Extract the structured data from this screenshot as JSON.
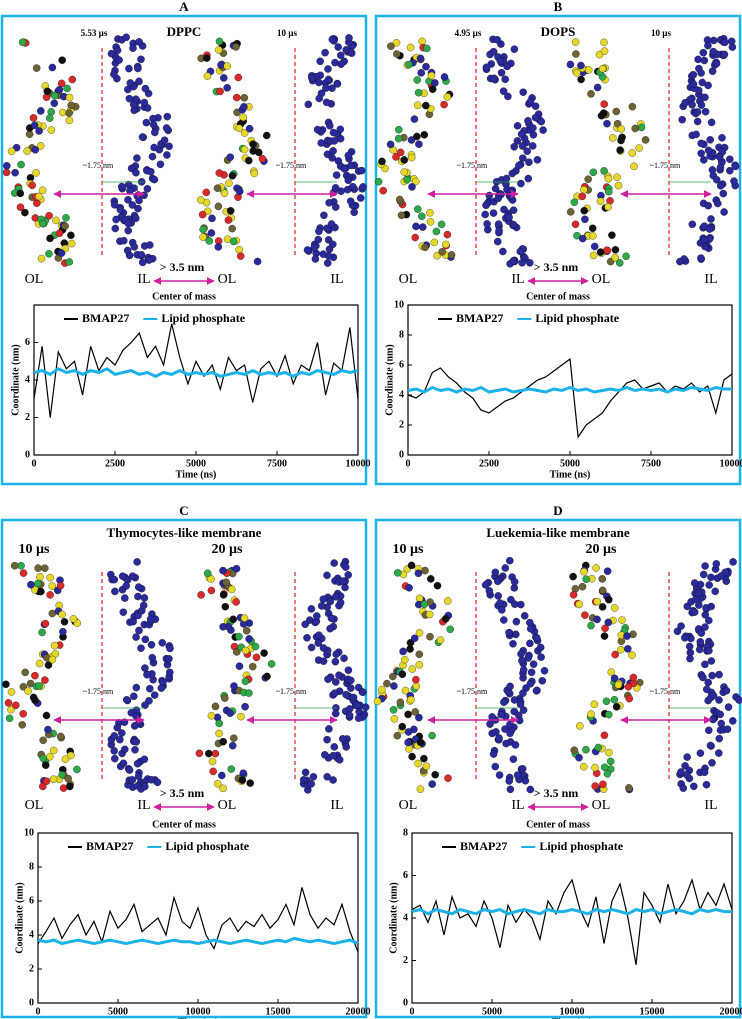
{
  "chart_data": [
    {
      "type": "line",
      "panel": "A",
      "title": "DPPC",
      "snapshots": [
        {
          "time": "5.53 µs",
          "distance": "~1.75 nm"
        },
        {
          "time": "10 µs",
          "distance": "~1.75 nm"
        }
      ],
      "layer_labels": [
        "OL",
        "IL",
        "OL",
        "IL"
      ],
      "separation": "> 3.5 nm",
      "caption": "Center of mass",
      "xlabel": "Time (ns)",
      "ylabel": "Coordinate (nm)",
      "x": [
        0,
        250,
        500,
        750,
        1000,
        1250,
        1500,
        1750,
        2000,
        2250,
        2500,
        2750,
        3000,
        3250,
        3500,
        3750,
        4000,
        4250,
        4500,
        4750,
        5000,
        5250,
        5500,
        5750,
        6000,
        6250,
        6500,
        6750,
        7000,
        7250,
        7500,
        7750,
        8000,
        8250,
        8500,
        8750,
        9000,
        9250,
        9500,
        9750,
        10000
      ],
      "series": [
        {
          "name": "BMAP27",
          "color": "#000000",
          "values": [
            3.0,
            5.8,
            2.0,
            5.5,
            4.6,
            5.0,
            3.2,
            5.8,
            4.5,
            5.2,
            4.8,
            5.6,
            6.0,
            6.5,
            5.2,
            5.8,
            4.8,
            7.0,
            5.2,
            3.8,
            5.0,
            4.2,
            4.8,
            3.5,
            5.2,
            4.5,
            4.8,
            2.8,
            4.6,
            5.0,
            4.2,
            5.3,
            3.8,
            4.8,
            4.5,
            6.0,
            3.2,
            4.9,
            4.5,
            6.8,
            3.0
          ]
        },
        {
          "name": "Lipid phosphate",
          "color": "#1ab2e8",
          "values": [
            4.4,
            4.5,
            4.3,
            4.6,
            4.4,
            4.5,
            4.3,
            4.5,
            4.4,
            4.6,
            4.3,
            4.4,
            4.5,
            4.3,
            4.4,
            4.2,
            4.4,
            4.3,
            4.5,
            4.3,
            4.4,
            4.3,
            4.4,
            4.2,
            4.3,
            4.4,
            4.3,
            4.5,
            4.3,
            4.4,
            4.3,
            4.4,
            4.2,
            4.4,
            4.3,
            4.5,
            4.4,
            4.3,
            4.5,
            4.4,
            4.5
          ]
        }
      ],
      "xlim": [
        0,
        10000
      ],
      "xticks": [
        0,
        2500,
        5000,
        7500,
        10000
      ],
      "ylim": [
        0,
        8
      ],
      "yticks": [
        0,
        2,
        4,
        6
      ],
      "legend": "top"
    },
    {
      "type": "line",
      "panel": "B",
      "title": "DOPS",
      "snapshots": [
        {
          "time": "4.95 µs",
          "distance": "~1.75 nm"
        },
        {
          "time": "10 µs",
          "distance": "~1.75 nm"
        }
      ],
      "layer_labels": [
        "OL",
        "IL",
        "OL",
        "IL"
      ],
      "separation": "> 3.5 nm",
      "caption": "Center of mass",
      "xlabel": "Time (ns)",
      "ylabel": "Coordinate (nm)",
      "x": [
        0,
        250,
        500,
        750,
        1000,
        1250,
        1500,
        1750,
        2000,
        2250,
        2500,
        2750,
        3000,
        3250,
        3500,
        3750,
        4000,
        4250,
        4500,
        4750,
        5000,
        5250,
        5500,
        5750,
        6000,
        6250,
        6500,
        6750,
        7000,
        7250,
        7500,
        7750,
        8000,
        8250,
        8500,
        8750,
        9000,
        9250,
        9500,
        9750,
        10000
      ],
      "series": [
        {
          "name": "BMAP27",
          "color": "#000000",
          "values": [
            4.0,
            3.8,
            4.2,
            5.5,
            5.8,
            5.2,
            4.8,
            4.2,
            3.8,
            3.0,
            2.8,
            3.2,
            3.6,
            3.8,
            4.2,
            4.6,
            5.0,
            5.2,
            5.6,
            6.0,
            6.4,
            1.2,
            2.0,
            2.4,
            2.8,
            3.6,
            4.2,
            4.8,
            5.0,
            4.4,
            4.6,
            4.8,
            4.2,
            4.6,
            4.4,
            4.8,
            4.2,
            4.6,
            2.8,
            5.0,
            5.4
          ]
        },
        {
          "name": "Lipid phosphate",
          "color": "#1ab2e8",
          "values": [
            4.3,
            4.4,
            4.2,
            4.5,
            4.3,
            4.4,
            4.2,
            4.4,
            4.3,
            4.5,
            4.2,
            4.3,
            4.4,
            4.2,
            4.3,
            4.4,
            4.3,
            4.2,
            4.4,
            4.3,
            4.5,
            4.3,
            4.4,
            4.2,
            4.3,
            4.4,
            4.3,
            4.5,
            4.3,
            4.4,
            4.3,
            4.4,
            4.2,
            4.4,
            4.3,
            4.5,
            4.4,
            4.3,
            4.5,
            4.4,
            4.4
          ]
        }
      ],
      "xlim": [
        0,
        10000
      ],
      "xticks": [
        0,
        2500,
        5000,
        7500,
        10000
      ],
      "ylim": [
        0,
        10
      ],
      "yticks": [
        0,
        2,
        4,
        6,
        8,
        10
      ],
      "legend": "top"
    },
    {
      "type": "line",
      "panel": "C",
      "title": "Thymocytes-like membrane",
      "snapshots": [
        {
          "time": "10 µs",
          "distance": "~1.75 nm"
        },
        {
          "time": "20 µs",
          "distance": "~1.75 nm"
        }
      ],
      "layer_labels": [
        "OL",
        "IL",
        "OL",
        "IL"
      ],
      "separation": "> 3.5 nm",
      "caption": "Center of mass",
      "xlabel": "Time (ns)",
      "ylabel": "Coordinate (nm)",
      "x": [
        0,
        500,
        1000,
        1500,
        2000,
        2500,
        3000,
        3500,
        4000,
        4500,
        5000,
        5500,
        6000,
        6500,
        7000,
        7500,
        8000,
        8500,
        9000,
        9500,
        10000,
        10500,
        11000,
        11500,
        12000,
        12500,
        13000,
        13500,
        14000,
        14500,
        15000,
        15500,
        16000,
        16500,
        17000,
        17500,
        18000,
        18500,
        19000,
        19500,
        20000
      ],
      "series": [
        {
          "name": "BMAP27",
          "color": "#000000",
          "values": [
            3.5,
            4.2,
            5.0,
            3.8,
            4.6,
            5.2,
            4.0,
            4.8,
            3.6,
            5.4,
            4.4,
            4.9,
            5.8,
            4.2,
            4.6,
            5.0,
            4.0,
            6.2,
            4.8,
            4.4,
            5.6,
            4.0,
            3.2,
            4.6,
            5.0,
            4.2,
            4.8,
            4.5,
            5.2,
            4.4,
            4.9,
            5.8,
            4.6,
            6.8,
            5.2,
            4.4,
            5.0,
            4.6,
            5.8,
            4.2,
            3.0
          ]
        },
        {
          "name": "Lipid phosphate",
          "color": "#1ab2e8",
          "values": [
            3.7,
            3.6,
            3.7,
            3.5,
            3.6,
            3.7,
            3.6,
            3.5,
            3.6,
            3.7,
            3.6,
            3.5,
            3.6,
            3.7,
            3.6,
            3.5,
            3.6,
            3.7,
            3.6,
            3.6,
            3.5,
            3.6,
            3.7,
            3.6,
            3.5,
            3.6,
            3.7,
            3.6,
            3.5,
            3.6,
            3.7,
            3.6,
            3.8,
            3.7,
            3.6,
            3.7,
            3.6,
            3.5,
            3.6,
            3.7,
            3.5
          ]
        }
      ],
      "xlim": [
        0,
        20000
      ],
      "xticks": [
        0,
        5000,
        10000,
        15000,
        20000
      ],
      "ylim": [
        0,
        10
      ],
      "yticks": [
        0,
        2,
        4,
        6,
        8,
        10
      ],
      "legend": "top"
    },
    {
      "type": "line",
      "panel": "D",
      "title": "Luekemia-like membrane",
      "snapshots": [
        {
          "time": "10 µs",
          "distance": "~1.75 nm"
        },
        {
          "time": "20 µs",
          "distance": "~1.75 nm"
        }
      ],
      "layer_labels": [
        "OL",
        "IL",
        "OL",
        "IL"
      ],
      "separation": "> 3.5 nm",
      "caption": "Center of mass",
      "xlabel": "Time (ns)",
      "ylabel": "Coordinate (nm)",
      "x": [
        0,
        500,
        1000,
        1500,
        2000,
        2500,
        3000,
        3500,
        4000,
        4500,
        5000,
        5500,
        6000,
        6500,
        7000,
        7500,
        8000,
        8500,
        9000,
        9500,
        10000,
        10500,
        11000,
        11500,
        12000,
        12500,
        13000,
        13500,
        14000,
        14500,
        15000,
        15500,
        16000,
        16500,
        17000,
        17500,
        18000,
        18500,
        19000,
        19500,
        20000
      ],
      "series": [
        {
          "name": "BMAP27",
          "color": "#000000",
          "values": [
            4.4,
            4.6,
            3.8,
            4.8,
            3.2,
            5.0,
            4.0,
            4.2,
            3.6,
            4.8,
            4.0,
            2.6,
            4.6,
            3.8,
            4.4,
            4.0,
            3.0,
            4.8,
            4.2,
            5.2,
            5.8,
            4.4,
            3.6,
            5.0,
            2.8,
            4.8,
            5.6,
            4.0,
            1.8,
            5.2,
            4.6,
            3.8,
            5.6,
            4.2,
            4.8,
            5.8,
            4.4,
            5.2,
            4.6,
            5.6,
            4.4
          ]
        },
        {
          "name": "Lipid phosphate",
          "color": "#1ab2e8",
          "values": [
            4.3,
            4.4,
            4.2,
            4.4,
            4.3,
            4.2,
            4.4,
            4.3,
            4.2,
            4.4,
            4.3,
            4.4,
            4.2,
            4.3,
            4.4,
            4.3,
            4.2,
            4.4,
            4.3,
            4.3,
            4.4,
            4.3,
            4.2,
            4.4,
            4.3,
            4.4,
            4.3,
            4.2,
            4.4,
            4.3,
            4.4,
            4.2,
            4.3,
            4.4,
            4.3,
            4.2,
            4.4,
            4.3,
            4.4,
            4.3,
            4.3
          ]
        }
      ],
      "xlim": [
        0,
        20000
      ],
      "xticks": [
        0,
        5000,
        10000,
        15000,
        20000
      ],
      "ylim": [
        0,
        8
      ],
      "yticks": [
        0,
        2,
        4,
        6,
        8
      ],
      "legend": "top"
    }
  ]
}
